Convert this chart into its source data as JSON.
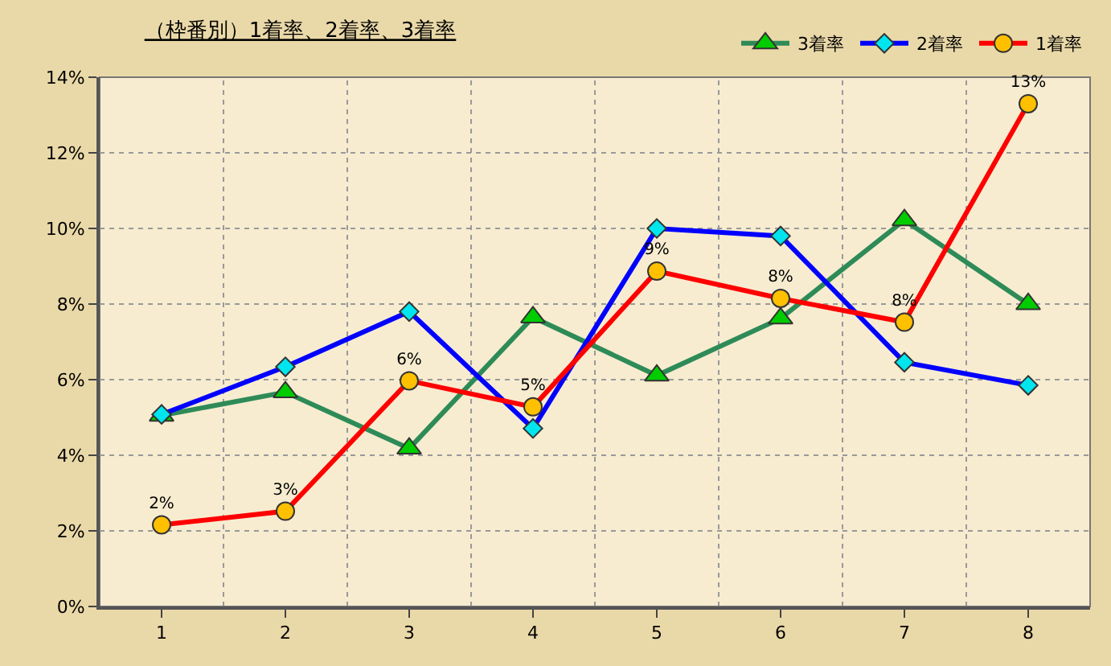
{
  "chart_data": {
    "type": "line",
    "title": "（枠番別）1着率、2着率、3着率",
    "categories": [
      "1",
      "2",
      "3",
      "4",
      "5",
      "6",
      "7",
      "8"
    ],
    "series": [
      {
        "name": "3着率",
        "color": "#2e8b57",
        "marker": "triangle",
        "values": [
          5.05,
          5.67,
          4.18,
          7.65,
          6.11,
          7.62,
          10.22,
          8.0
        ]
      },
      {
        "name": "2着率",
        "color": "#0000ff",
        "marker": "diamond",
        "values": [
          5.08,
          6.34,
          7.8,
          4.71,
          10.0,
          9.8,
          6.46,
          5.85
        ]
      },
      {
        "name": "1着率",
        "color": "#ff0000",
        "marker": "circle",
        "values": [
          2.16,
          2.52,
          5.97,
          5.28,
          8.87,
          8.15,
          7.52,
          13.3
        ],
        "value_labels": [
          "2%",
          "3%",
          "6%",
          "5%",
          "9%",
          "8%",
          "8%",
          "13%"
        ]
      }
    ],
    "ylim": [
      0,
      14
    ],
    "yticks": [
      {
        "value": 0,
        "label": "0%"
      },
      {
        "value": 2,
        "label": "2%"
      },
      {
        "value": 4,
        "label": "4%"
      },
      {
        "value": 6,
        "label": "6%"
      },
      {
        "value": 8,
        "label": "8%"
      },
      {
        "value": 10,
        "label": "10%"
      },
      {
        "value": 12,
        "label": "12%"
      },
      {
        "value": 14,
        "label": "14%"
      }
    ],
    "grid": true,
    "legend": "top right",
    "line_style": "solid"
  }
}
